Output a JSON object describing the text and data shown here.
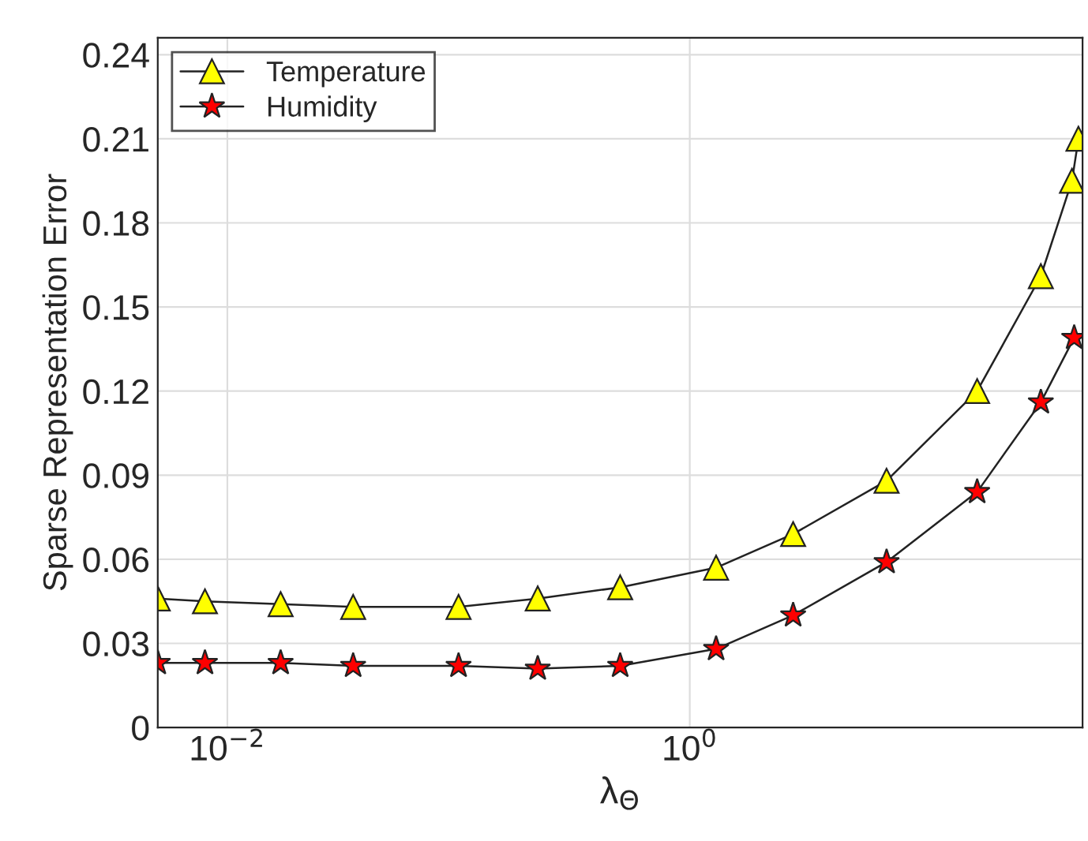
{
  "chart_data": {
    "type": "line",
    "xlabel": "λ$_{Θ}$",
    "ylabel": "Sparse Representation Error",
    "log": "x",
    "xlim": [
      0.005,
      50
    ],
    "xticks": [
      {
        "value": 0.01,
        "label": "10$^{−2}$"
      },
      {
        "value": 1,
        "label": "10$^{0}$"
      }
    ],
    "ylim": [
      0,
      0.246
    ],
    "yticks": [
      0,
      0.03,
      0.06,
      0.09,
      0.12,
      0.15,
      0.18,
      0.21,
      0.24
    ],
    "grid": true,
    "legend": "top left",
    "line_style": "solid",
    "series": [
      {
        "name": "Temperature",
        "color": "#ffff00",
        "marker": "triangle",
        "x": [
          0.005,
          0.008,
          0.017,
          0.035,
          0.1,
          0.22,
          0.5,
          1.3,
          2.8,
          7.1,
          17.5,
          33,
          45,
          48
        ],
        "values": [
          0.046,
          0.045,
          0.044,
          0.043,
          0.043,
          0.046,
          0.05,
          0.057,
          0.069,
          0.088,
          0.12,
          0.161,
          0.195,
          0.21
        ]
      },
      {
        "name": "Humidity",
        "color": "#ff0000",
        "marker": "star",
        "x": [
          0.005,
          0.008,
          0.017,
          0.035,
          0.1,
          0.22,
          0.5,
          1.3,
          2.8,
          7.1,
          17.5,
          33,
          46
        ],
        "values": [
          0.023,
          0.023,
          0.023,
          0.022,
          0.022,
          0.021,
          0.022,
          0.028,
          0.04,
          0.059,
          0.084,
          0.116,
          0.139
        ]
      }
    ]
  }
}
